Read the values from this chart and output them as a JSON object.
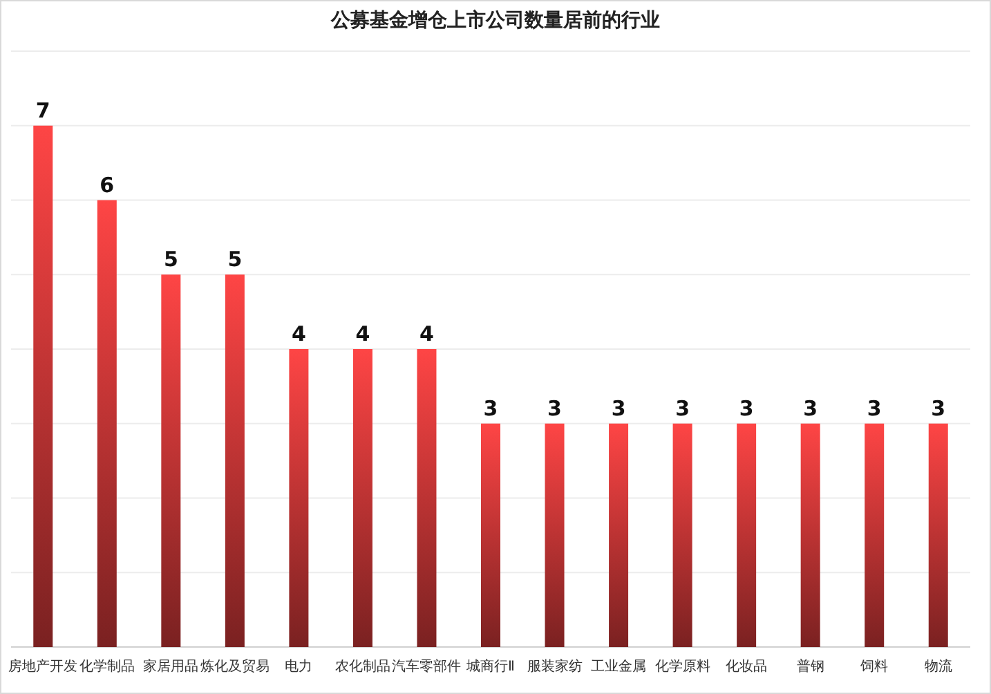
{
  "chart_data": {
    "type": "bar",
    "title": "公募基金增仓上市公司数量居前的行业",
    "categories": [
      "房地产开发",
      "化学制品",
      "家居用品",
      "炼化及贸易",
      "电力",
      "农化制品",
      "汽车零部件",
      "城商行Ⅱ",
      "服装家纺",
      "工业金属",
      "化学原料",
      "化妆品",
      "普钢",
      "饲料",
      "物流"
    ],
    "values": [
      7,
      6,
      5,
      5,
      4,
      4,
      4,
      3,
      3,
      3,
      3,
      3,
      3,
      3,
      3
    ],
    "color": "#fe4545",
    "ylim": [
      0,
      8
    ],
    "yticks": [
      {
        "value": 0,
        "label": null
      },
      {
        "value": 1,
        "label": null
      },
      {
        "value": 2,
        "label": null
      },
      {
        "value": 3,
        "label": null
      },
      {
        "value": 4,
        "label": null
      },
      {
        "value": 5,
        "label": null
      },
      {
        "value": 6,
        "label": null
      },
      {
        "value": 7,
        "label": null
      },
      {
        "value": 8,
        "label": null
      }
    ],
    "grid": "y",
    "tick_labels": "x",
    "data_labels": true
  }
}
